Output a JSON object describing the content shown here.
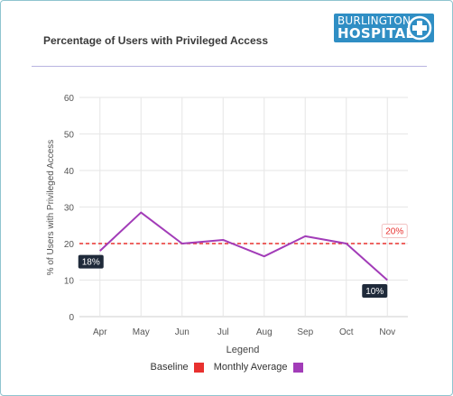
{
  "header": {
    "title": "Percentage of Users with Privileged Access",
    "logo_line1": "BURLINGTON",
    "logo_line2": "HOSPITAL"
  },
  "colors": {
    "baseline": "#e8312f",
    "monthly_average": "#a23cb8",
    "grid": "#e6e6e6",
    "logo_bg": "#2f8ec4"
  },
  "chart_data": {
    "type": "line",
    "title": "Percentage of Users with Privileged Access",
    "xlabel": "Legend",
    "ylabel": "% of Users with Privileged Access",
    "categories": [
      "Apr",
      "May",
      "Jun",
      "Jul",
      "Aug",
      "Sep",
      "Oct",
      "Nov"
    ],
    "ylim": [
      0,
      60
    ],
    "yticks": [
      0,
      10,
      20,
      30,
      40,
      50,
      60
    ],
    "grid": true,
    "series": [
      {
        "name": "Baseline",
        "style": "dashed",
        "color": "#e8312f",
        "values": [
          20,
          20,
          20,
          20,
          20,
          20,
          20,
          20
        ]
      },
      {
        "name": "Monthly Average",
        "style": "solid",
        "color": "#a23cb8",
        "values": [
          18,
          28.5,
          20,
          21,
          16.5,
          22,
          20,
          10
        ]
      }
    ],
    "annotations": [
      {
        "text": "18%",
        "category": "Apr",
        "value": 18,
        "style": "dark"
      },
      {
        "text": "10%",
        "category": "Nov",
        "value": 10,
        "style": "dark"
      },
      {
        "text": "20%",
        "category": "Nov",
        "value": 20,
        "style": "light"
      }
    ],
    "legend": {
      "position": "bottom",
      "items": [
        {
          "label": "Baseline",
          "color": "#e8312f"
        },
        {
          "label": "Monthly Average",
          "color": "#a23cb8"
        }
      ]
    }
  }
}
